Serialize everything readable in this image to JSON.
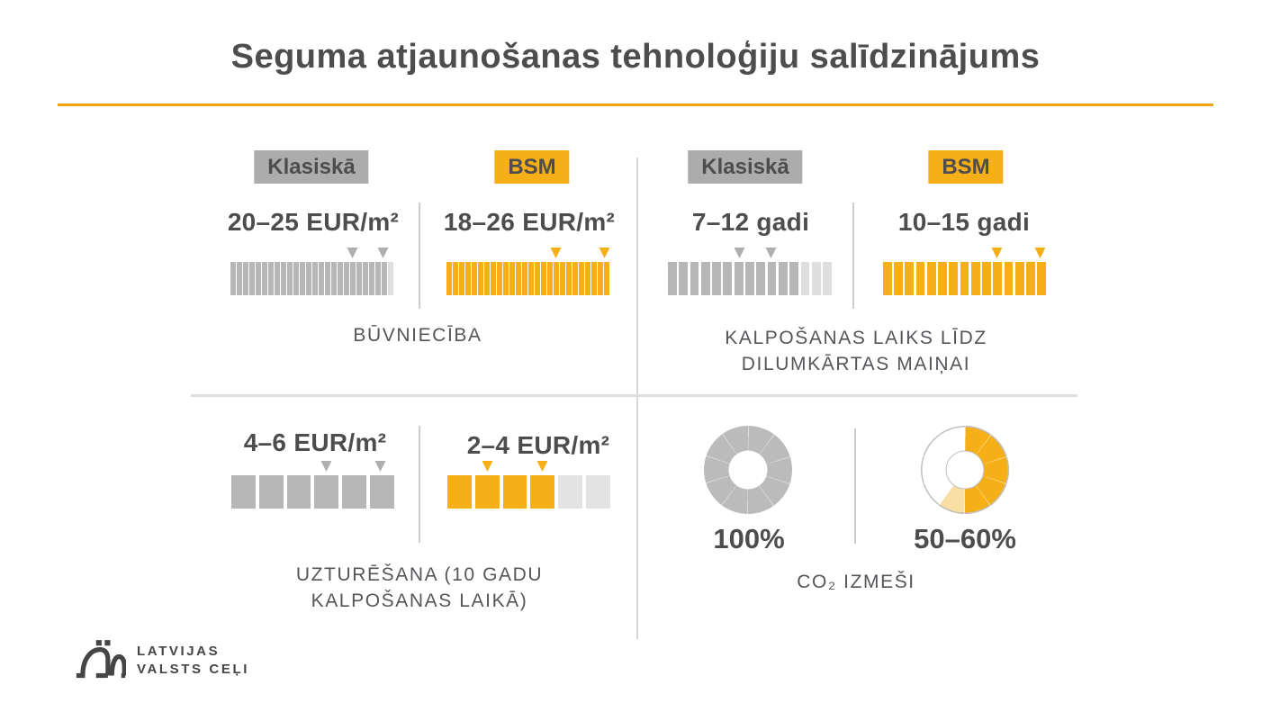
{
  "title": "Seguma atjaunošanas tehnoloģiju salīdzinājums",
  "colors": {
    "accent": "#F7AF17",
    "accent_pale": "#FADFA4",
    "underline": "#F0A50B",
    "gray_fill": "#B7B7B7",
    "gray_empty": "#DFDFDF",
    "badge_gray_bg": "#ACACAC",
    "text_dark": "#4D4D4F",
    "text_caption": "#55565A",
    "divider": "#D8D8D8",
    "divider_inner": "#CDCDCD",
    "donut_gray": "#BBBBBB",
    "donut_outline": "#BFBFBF",
    "logo": "#454547"
  },
  "legend": {
    "classic": "Klasiskā",
    "bsm": "BSM"
  },
  "panels": {
    "buvnieciba": {
      "caption": "BŪVNIECĪBA",
      "classic": {
        "label": "Klasiskā",
        "value": "20–25 EUR/m²",
        "strip": {
          "total": 26,
          "filled": 25,
          "fill": "#B7B7B7",
          "empty": "#DFDFDF",
          "marker": "#AFAFAF",
          "markers_pct": [
            75,
            94
          ]
        }
      },
      "bsm": {
        "label": "BSM",
        "value": "18–26 EUR/m²",
        "strip": {
          "total": 26,
          "filled": 26,
          "fill": "#F7AF17",
          "empty": "#FADFA4",
          "marker": "#F7AF17",
          "markers_pct": [
            67.5,
            97.5
          ]
        }
      }
    },
    "kalposanas": {
      "caption_line1": "KALPOŠANAS LAIKS LĪDZ",
      "caption_line2": "DILUMKĀRTAS MAIŅAI",
      "classic": {
        "label": "Klasiskā",
        "value": "7–12 gadi",
        "strip": {
          "total": 15,
          "filled": 12,
          "fill": "#B7B7B7",
          "empty": "#DFDFDF",
          "marker": "#AFAFAF",
          "markers_pct": [
            44,
            63
          ]
        }
      },
      "bsm": {
        "label": "BSM",
        "value": "10–15 gadi",
        "strip": {
          "total": 15,
          "filled": 15,
          "fill": "#F7AF17",
          "empty": "#FADFA4",
          "marker": "#F7AF17",
          "markers_pct": [
            70,
            96.5
          ]
        }
      }
    },
    "uzturesana": {
      "caption_line1": "UZTURĒŠANA (10 GADU",
      "caption_line2": "KALPOŠANAS LAIKĀ)",
      "classic": {
        "value": "4–6 EUR/m²",
        "strip": {
          "total": 6,
          "filled": 6,
          "fill": "#B7B7B7",
          "empty": "#E3E3E3",
          "marker": "#AFAFAF",
          "markers_pct": [
            58.3,
            91.7
          ]
        }
      },
      "bsm": {
        "value": "2–4 EUR/m²",
        "strip": {
          "total": 6,
          "filled": 4,
          "fill": "#F7AF17",
          "empty": "#E3E3E3",
          "marker": "#F7AF17",
          "markers_pct": [
            25,
            58.3
          ]
        }
      }
    },
    "co2": {
      "caption": "CO₂ IZMEŠI",
      "classic": {
        "value": "100%",
        "donut": {
          "slices": [
            {
              "color": "#BBBBBB",
              "from": 0,
              "to": 100
            }
          ],
          "rest": null,
          "border": null,
          "segment_lines": true
        }
      },
      "bsm": {
        "value": "50–60%",
        "donut": {
          "slices": [
            {
              "color": "#F7AF17",
              "from": 0,
              "to": 50
            },
            {
              "color": "#FADFA4",
              "from": 50,
              "to": 60
            }
          ],
          "rest": "#FFFFFF",
          "border": "#BFBFBF",
          "segment_lines": true
        }
      }
    }
  },
  "logo": {
    "line1": "LATVIJAS",
    "line2": "VALSTS CEĻI",
    "icon": "lvc-arches-icon"
  },
  "chart_data": [
    {
      "type": "bar",
      "title": "BŪVNIECĪBA",
      "unit": "EUR/m²",
      "categories": [
        "Klasiskā",
        "BSM"
      ],
      "ranges": [
        [
          20,
          25
        ],
        [
          18,
          26
        ]
      ],
      "labels": [
        "20–25 EUR/m²",
        "18–26 EUR/m²"
      ],
      "scale_max": 26,
      "colors": [
        "#B7B7B7",
        "#F7AF17"
      ]
    },
    {
      "type": "bar",
      "title": "KALPOŠANAS LAIKS LĪDZ DILUMKĀRTAS MAIŅAI",
      "unit": "gadi",
      "categories": [
        "Klasiskā",
        "BSM"
      ],
      "ranges": [
        [
          7,
          12
        ],
        [
          10,
          15
        ]
      ],
      "labels": [
        "7–12 gadi",
        "10–15 gadi"
      ],
      "scale_max": 15,
      "colors": [
        "#B7B7B7",
        "#F7AF17"
      ]
    },
    {
      "type": "bar",
      "title": "UZTURĒŠANA (10 GADU KALPOŠANAS LAIKĀ)",
      "unit": "EUR/m²",
      "categories": [
        "Klasiskā",
        "BSM"
      ],
      "ranges": [
        [
          4,
          6
        ],
        [
          2,
          4
        ]
      ],
      "labels": [
        "4–6 EUR/m²",
        "2–4 EUR/m²"
      ],
      "scale_max": 6,
      "colors": [
        "#B7B7B7",
        "#F7AF17"
      ]
    },
    {
      "type": "pie",
      "title": "CO₂ IZMEŠI",
      "categories": [
        "Klasiskā",
        "BSM"
      ],
      "values": [
        100,
        55
      ],
      "labels": [
        "100%",
        "50–60%"
      ],
      "bsm_range_pct": [
        50,
        60
      ],
      "colors": [
        "#BBBBBB",
        "#F7AF17"
      ]
    }
  ]
}
